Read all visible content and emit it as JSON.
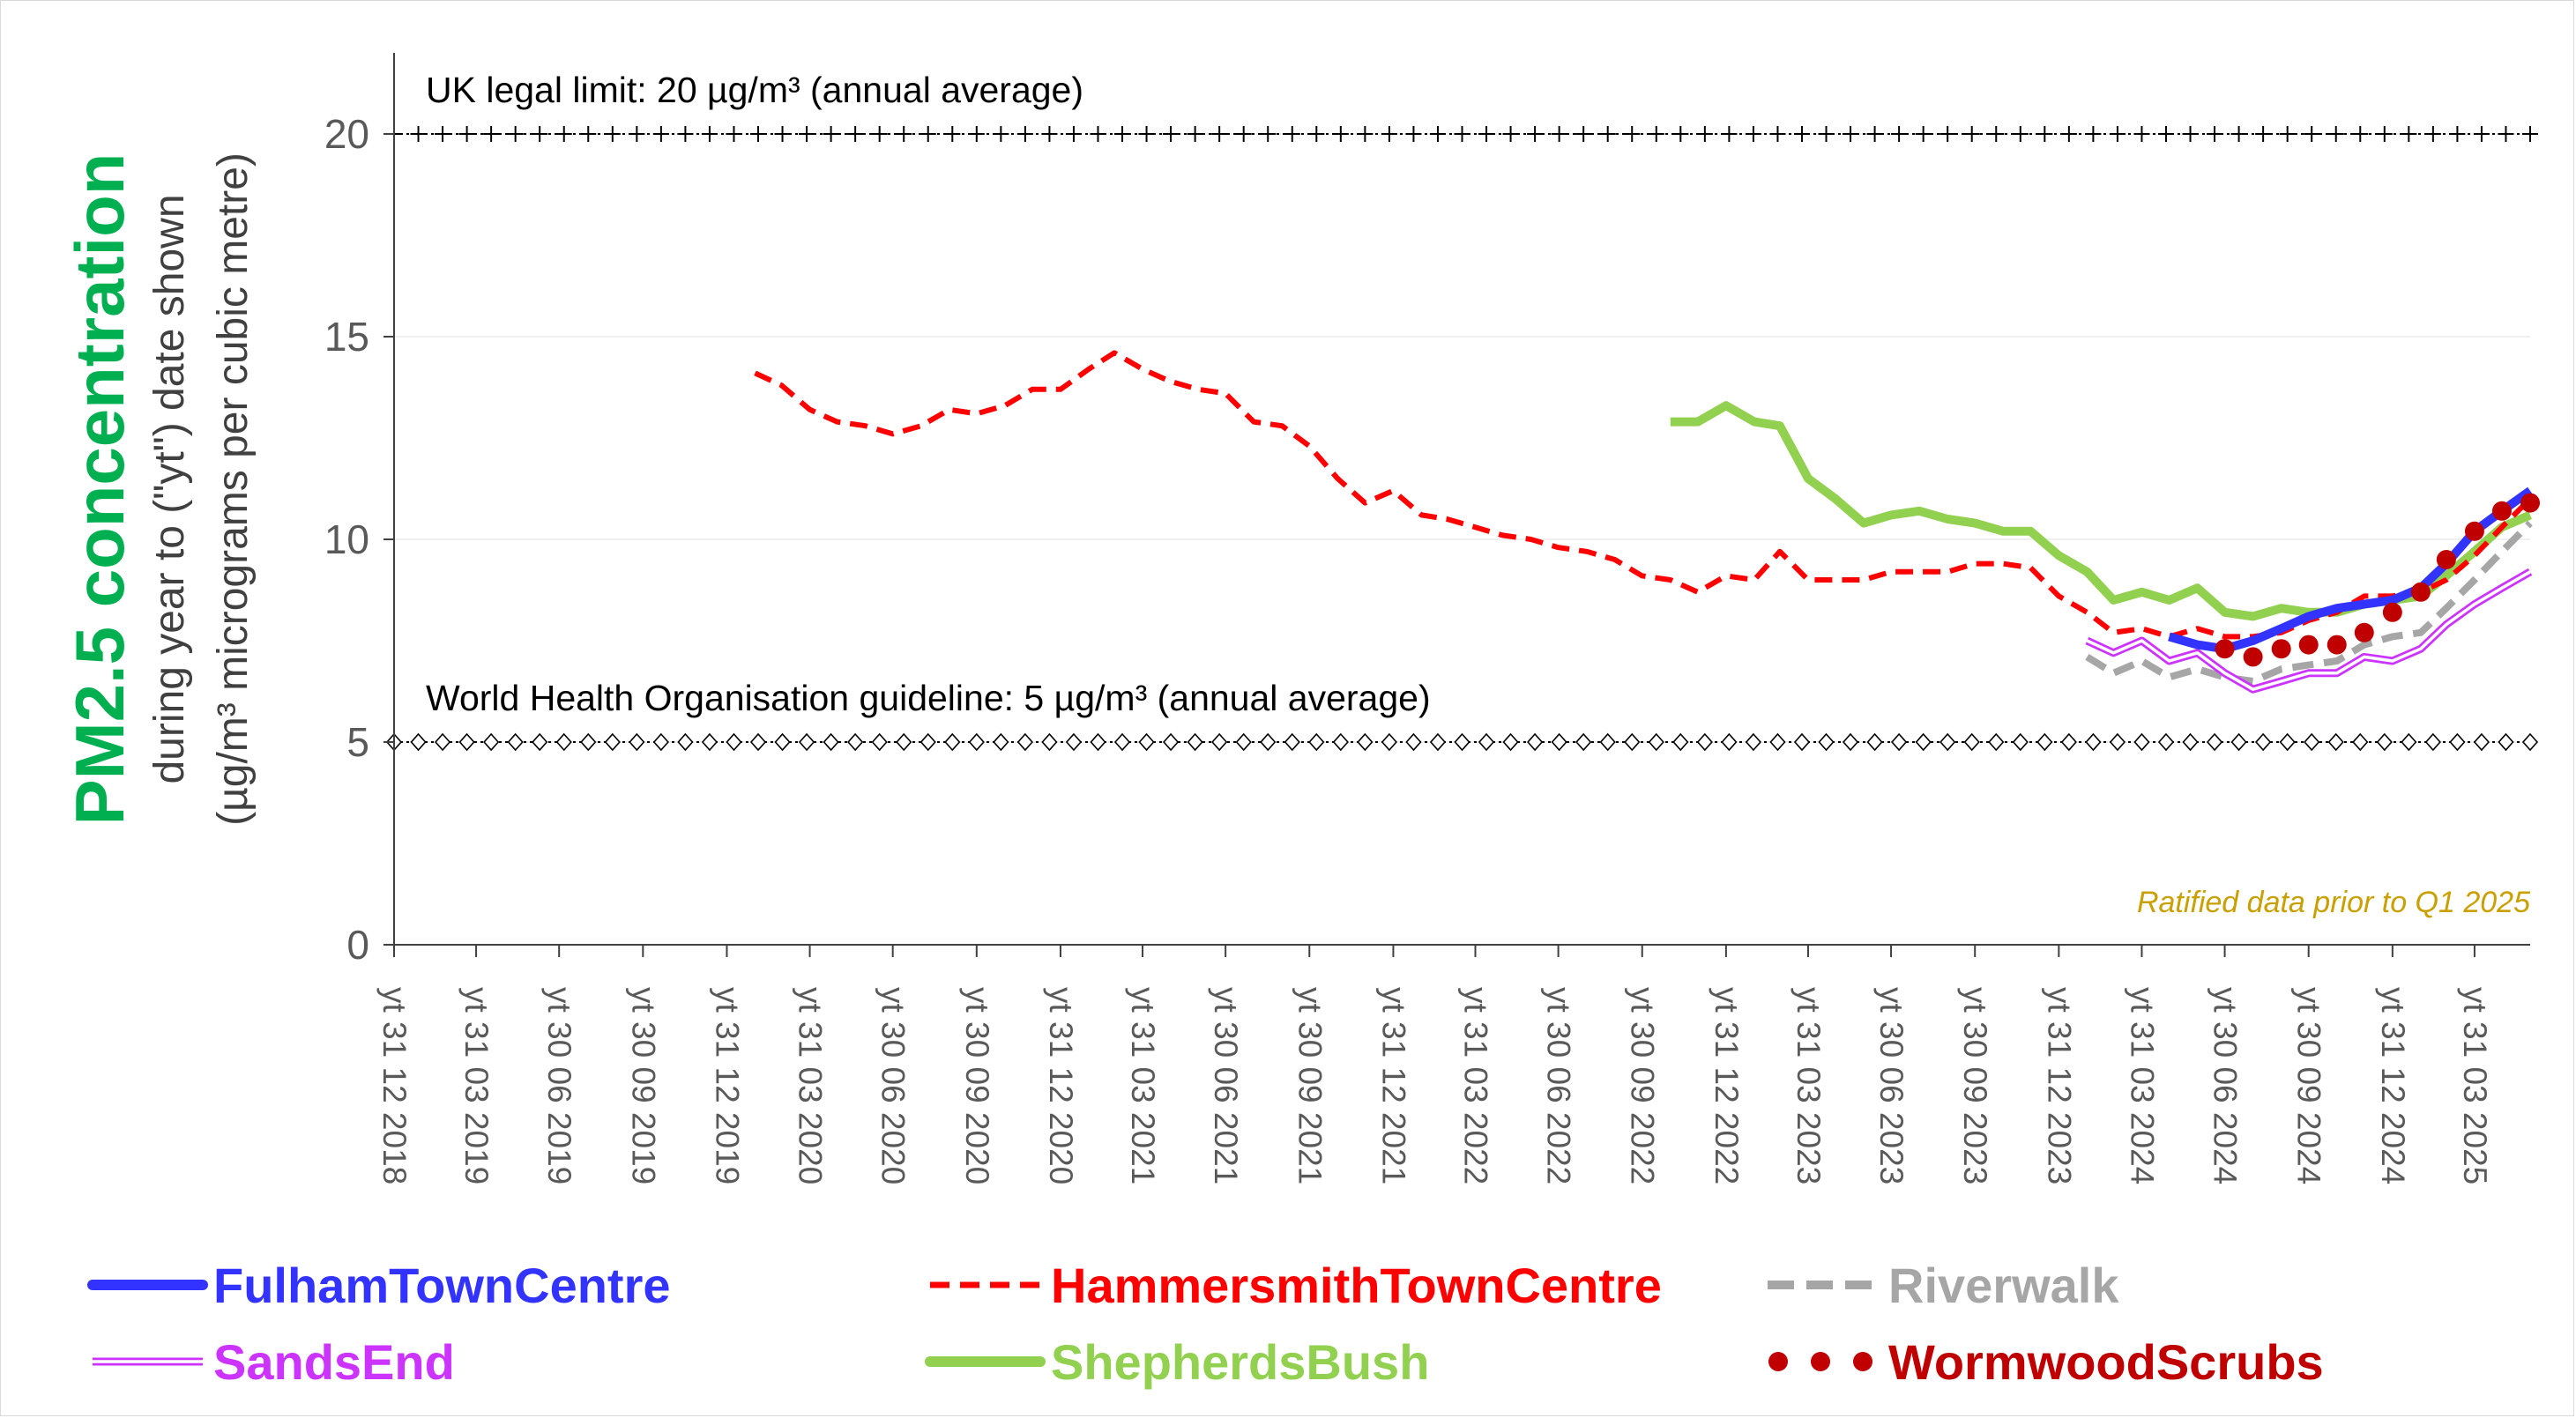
{
  "chart_data": {
    "type": "line",
    "title": "PM2.5 concentration",
    "ylabel_lines": [
      "during year to (\"yt\") date shown",
      "(µg/m³ micrograms per cubic metre)"
    ],
    "ylim": [
      0,
      22
    ],
    "yticks": [
      0,
      5,
      10,
      15,
      20
    ],
    "x_start": "2018-12-31",
    "x_end": "2025-05-31",
    "xtick_labels": [
      "yt 31 12 2018",
      "yt 31 03 2019",
      "yt 30 06 2019",
      "yt 30 09 2019",
      "yt 31 12 2019",
      "yt 31 03 2020",
      "yt 30 06 2020",
      "yt 30 09 2020",
      "yt 31 12 2020",
      "yt 31 03 2021",
      "yt 30 06 2021",
      "yt 30 09 2021",
      "yt 31 12 2021",
      "yt 31 03 2022",
      "yt 30 06 2022",
      "yt 30 09 2022",
      "yt 31 12 2022",
      "yt 31 03 2023",
      "yt 30 06 2023",
      "yt 30 09 2023",
      "yt 31 12 2023",
      "yt 31 03 2024",
      "yt 30 06 2024",
      "yt 30 09 2024",
      "yt 31 12 2024",
      "yt 31 03 2025"
    ],
    "xticks": [
      "2018-12-31",
      "2019-03-31",
      "2019-06-30",
      "2019-09-30",
      "2019-12-31",
      "2020-03-31",
      "2020-06-30",
      "2020-09-30",
      "2020-12-31",
      "2021-03-31",
      "2021-06-30",
      "2021-09-30",
      "2021-12-31",
      "2022-03-31",
      "2022-06-30",
      "2022-09-30",
      "2022-12-31",
      "2023-03-31",
      "2023-06-30",
      "2023-09-30",
      "2023-12-31",
      "2024-03-31",
      "2024-06-30",
      "2024-09-30",
      "2024-12-31",
      "2025-03-31"
    ],
    "grid": "horizontal",
    "legend_position": "bottom",
    "reference_lines": [
      {
        "value": 20,
        "label": "UK legal limit: 20 µg/m³ (annual average)",
        "marker": "plus"
      },
      {
        "value": 5,
        "label": "World Health Organisation guideline: 5 µg/m³ (annual average)",
        "marker": "diamond"
      }
    ],
    "note": "Ratified data prior to Q1 2025",
    "series": [
      {
        "name": "FulhamTownCentre",
        "color": "#3333ff",
        "style": "solid-thick",
        "x": [
          "2024-04-30",
          "2024-05-31",
          "2024-06-30",
          "2024-07-31",
          "2024-08-31",
          "2024-09-30",
          "2024-10-31",
          "2024-11-30",
          "2024-12-31",
          "2025-01-31",
          "2025-02-28",
          "2025-03-31",
          "2025-04-30",
          "2025-05-31"
        ],
        "y": [
          7.6,
          7.4,
          7.3,
          7.5,
          7.8,
          8.1,
          8.3,
          8.4,
          8.5,
          8.8,
          9.4,
          10.2,
          10.7,
          11.2
        ]
      },
      {
        "name": "HammersmithTownCentre",
        "color": "#ff0000",
        "style": "dashed",
        "x": [
          "2020-01-31",
          "2020-02-29",
          "2020-03-31",
          "2020-04-30",
          "2020-05-31",
          "2020-06-30",
          "2020-07-31",
          "2020-08-31",
          "2020-09-30",
          "2020-10-31",
          "2020-11-30",
          "2020-12-31",
          "2021-01-31",
          "2021-02-28",
          "2021-03-31",
          "2021-04-30",
          "2021-05-31",
          "2021-06-30",
          "2021-07-31",
          "2021-08-31",
          "2021-09-30",
          "2021-10-31",
          "2021-11-30",
          "2021-12-31",
          "2022-01-31",
          "2022-02-28",
          "2022-03-31",
          "2022-04-30",
          "2022-05-31",
          "2022-06-30",
          "2022-07-31",
          "2022-08-31",
          "2022-09-30",
          "2022-10-31",
          "2022-11-30",
          "2022-12-31",
          "2023-01-31",
          "2023-02-28",
          "2023-03-31",
          "2023-04-30",
          "2023-05-31",
          "2023-06-30",
          "2023-07-31",
          "2023-08-31",
          "2023-09-30",
          "2023-10-31",
          "2023-11-30",
          "2023-12-31",
          "2024-01-31",
          "2024-02-29",
          "2024-03-31",
          "2024-04-30",
          "2024-05-31",
          "2024-06-30",
          "2024-07-31",
          "2024-08-31",
          "2024-09-30",
          "2024-10-31",
          "2024-11-30",
          "2024-12-31",
          "2025-01-31",
          "2025-02-28",
          "2025-03-31",
          "2025-04-30",
          "2025-05-31"
        ],
        "y": [
          14.1,
          13.8,
          13.2,
          12.9,
          12.8,
          12.6,
          12.8,
          13.2,
          13.1,
          13.3,
          13.7,
          13.7,
          14.2,
          14.6,
          14.2,
          13.9,
          13.7,
          13.6,
          12.9,
          12.8,
          12.3,
          11.5,
          10.9,
          11.2,
          10.6,
          10.5,
          10.3,
          10.1,
          10.0,
          9.8,
          9.7,
          9.5,
          9.1,
          9.0,
          8.7,
          9.1,
          9.0,
          9.7,
          9.0,
          9.0,
          9.0,
          9.2,
          9.2,
          9.2,
          9.4,
          9.4,
          9.3,
          8.6,
          8.2,
          7.7,
          7.8,
          7.6,
          7.8,
          7.6,
          7.6,
          7.7,
          8.0,
          8.2,
          8.6,
          8.6,
          8.7,
          9.0,
          9.6,
          10.3,
          11.0
        ]
      },
      {
        "name": "Riverwalk",
        "color": "#a6a6a6",
        "style": "dashed-thick",
        "x": [
          "2024-01-31",
          "2024-02-29",
          "2024-03-31",
          "2024-04-30",
          "2024-05-31",
          "2024-06-30",
          "2024-07-31",
          "2024-08-31",
          "2024-09-30",
          "2024-10-31",
          "2024-11-30",
          "2024-12-31",
          "2025-01-31",
          "2025-02-28",
          "2025-03-31",
          "2025-04-30",
          "2025-05-31"
        ],
        "y": [
          7.1,
          6.7,
          7.0,
          6.6,
          6.8,
          6.6,
          6.5,
          6.8,
          6.9,
          7.0,
          7.4,
          7.6,
          7.7,
          8.3,
          9.0,
          9.7,
          10.4
        ]
      },
      {
        "name": "SandsEnd",
        "color": "#cc33ff",
        "style": "double",
        "x": [
          "2024-01-31",
          "2024-02-29",
          "2024-03-31",
          "2024-04-30",
          "2024-05-31",
          "2024-06-30",
          "2024-07-31",
          "2024-08-31",
          "2024-09-30",
          "2024-10-31",
          "2024-11-30",
          "2024-12-31",
          "2025-01-31",
          "2025-02-28",
          "2025-03-31",
          "2025-04-30",
          "2025-05-31"
        ],
        "y": [
          7.5,
          7.2,
          7.5,
          7.0,
          7.2,
          6.7,
          6.3,
          6.5,
          6.7,
          6.7,
          7.1,
          7.0,
          7.3,
          7.9,
          8.4,
          8.8,
          9.2
        ]
      },
      {
        "name": "ShepherdsBush",
        "color": "#92d050",
        "style": "solid-thick",
        "x": [
          "2022-10-31",
          "2022-11-30",
          "2022-12-31",
          "2023-01-31",
          "2023-02-28",
          "2023-03-31",
          "2023-04-30",
          "2023-05-31",
          "2023-06-30",
          "2023-07-31",
          "2023-08-31",
          "2023-09-30",
          "2023-10-31",
          "2023-11-30",
          "2023-12-31",
          "2024-01-31",
          "2024-02-29",
          "2024-03-31",
          "2024-04-30",
          "2024-05-31",
          "2024-06-30",
          "2024-07-31",
          "2024-08-31",
          "2024-09-30",
          "2024-10-31",
          "2024-11-30",
          "2024-12-31",
          "2025-01-31",
          "2025-02-28",
          "2025-03-31",
          "2025-04-30",
          "2025-05-31"
        ],
        "y": [
          12.9,
          12.9,
          13.3,
          12.9,
          12.8,
          11.5,
          11.0,
          10.4,
          10.6,
          10.7,
          10.5,
          10.4,
          10.2,
          10.2,
          9.6,
          9.2,
          8.5,
          8.7,
          8.5,
          8.8,
          8.2,
          8.1,
          8.3,
          8.2,
          8.2,
          8.4,
          8.5,
          8.6,
          9.1,
          9.7,
          10.3,
          10.6
        ]
      },
      {
        "name": "WormwoodScrubs",
        "color": "#c00000",
        "style": "dots",
        "x": [
          "2024-06-30",
          "2024-07-31",
          "2024-08-31",
          "2024-09-30",
          "2024-10-31",
          "2024-11-30",
          "2024-12-31",
          "2025-01-31",
          "2025-02-28",
          "2025-03-31",
          "2025-04-30",
          "2025-05-31"
        ],
        "y": [
          7.3,
          7.1,
          7.3,
          7.4,
          7.4,
          7.7,
          8.2,
          8.7,
          9.5,
          10.2,
          10.7,
          10.9
        ]
      }
    ]
  }
}
